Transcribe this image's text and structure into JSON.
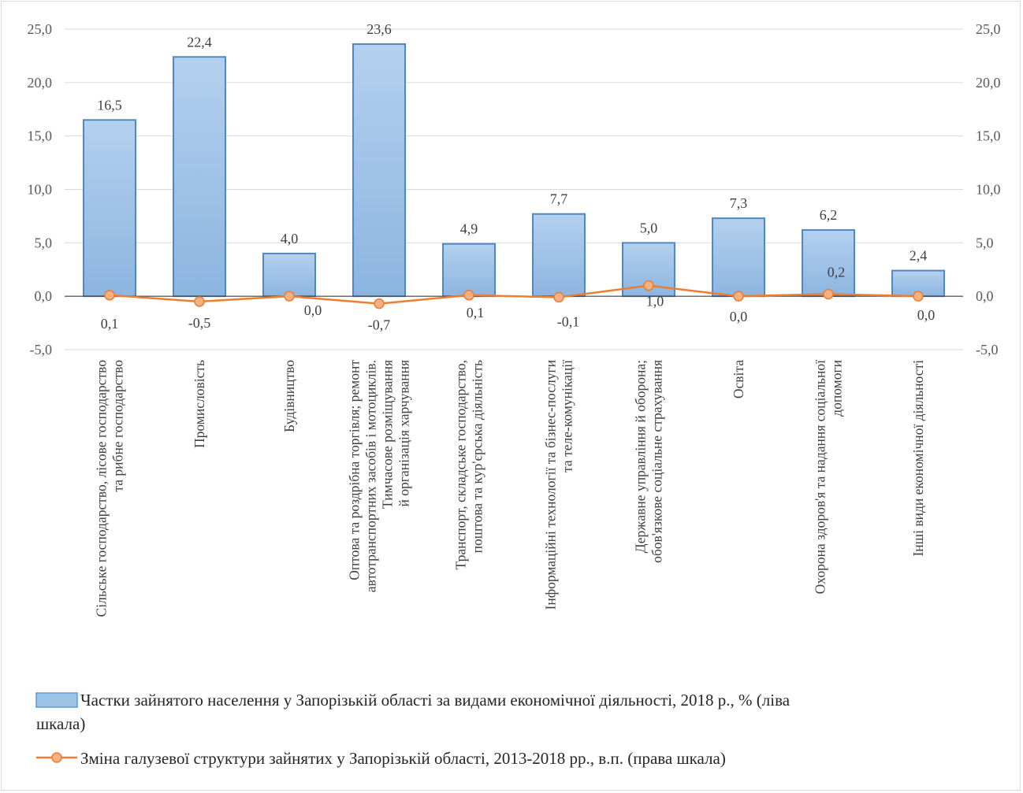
{
  "chart_data": {
    "type": "bar",
    "categories": [
      [
        "Сільське господарство, лісове господарство",
        "та рибне господарство"
      ],
      [
        "Промисловість"
      ],
      [
        "Будівництво"
      ],
      [
        "Оптова та роздрібна торгівля; ремонт",
        "автотранспортних засобів і мотоциклів.",
        "Тимчасове розміщування",
        "й організація харчування"
      ],
      [
        "Транспорт, складське господарство,",
        "поштова та кур'єрська діяльність"
      ],
      [
        "Інформаційні технології та бізнес-послуги",
        "та теле-комунікації"
      ],
      [
        "Державне управління й оборона;",
        "обов'язкове соціальне страхування"
      ],
      [
        "Освіта"
      ],
      [
        "Охорона здоров'я та надання соціальної",
        "допомоги"
      ],
      [
        "Інші види економічної діяльності"
      ]
    ],
    "series": [
      {
        "name": "Частки зайнятого населення у Запорізькій області за видами економічної діяльності, 2018 р., % (ліва шкала)",
        "kind": "bar",
        "axis": "left",
        "color": "#9dc3e6",
        "values": [
          16.5,
          22.4,
          4.0,
          23.6,
          4.9,
          7.7,
          5.0,
          7.3,
          6.2,
          2.4
        ],
        "labels": [
          "16,5",
          "22,4",
          "4,0",
          "23,6",
          "4,9",
          "7,7",
          "5,0",
          "7,3",
          "6,2",
          "2,4"
        ]
      },
      {
        "name": "Зміна галузевої структури зайнятих у Запорізькій області, 2013-2018 рр., в.п. (права шкала)",
        "kind": "line",
        "axis": "right",
        "color": "#ed7d31",
        "values": [
          0.1,
          -0.5,
          0.0,
          -0.7,
          0.1,
          -0.1,
          1.0,
          0.0,
          0.2,
          0.0
        ],
        "labels": [
          "0,1",
          "-0,5",
          "0,0",
          "-0,7",
          "0,1",
          "-0,1",
          "1,0",
          "0,0",
          "0,2",
          "0,0"
        ]
      }
    ],
    "left_axis": {
      "min": -5,
      "max": 25,
      "ticks": [
        "-5,0",
        "0,0",
        "5,0",
        "10,0",
        "15,0",
        "20,0",
        "25,0"
      ]
    },
    "right_axis": {
      "min": -5,
      "max": 25,
      "ticks": [
        "-5,0",
        "0,0",
        "5,0",
        "10,0",
        "15,0",
        "20,0",
        "25,0"
      ]
    },
    "grid": true,
    "legend_position": "bottom",
    "legend": {
      "bar_line1": "Частки зайнятого населення у Запорізькій області за видами економічної діяльності, 2018 р., % (ліва",
      "bar_line2": "шкала)",
      "line_text": "Зміна галузевої структури зайнятих у Запорізькій області, 2013-2018 рр., в.п. (права шкала)"
    }
  }
}
